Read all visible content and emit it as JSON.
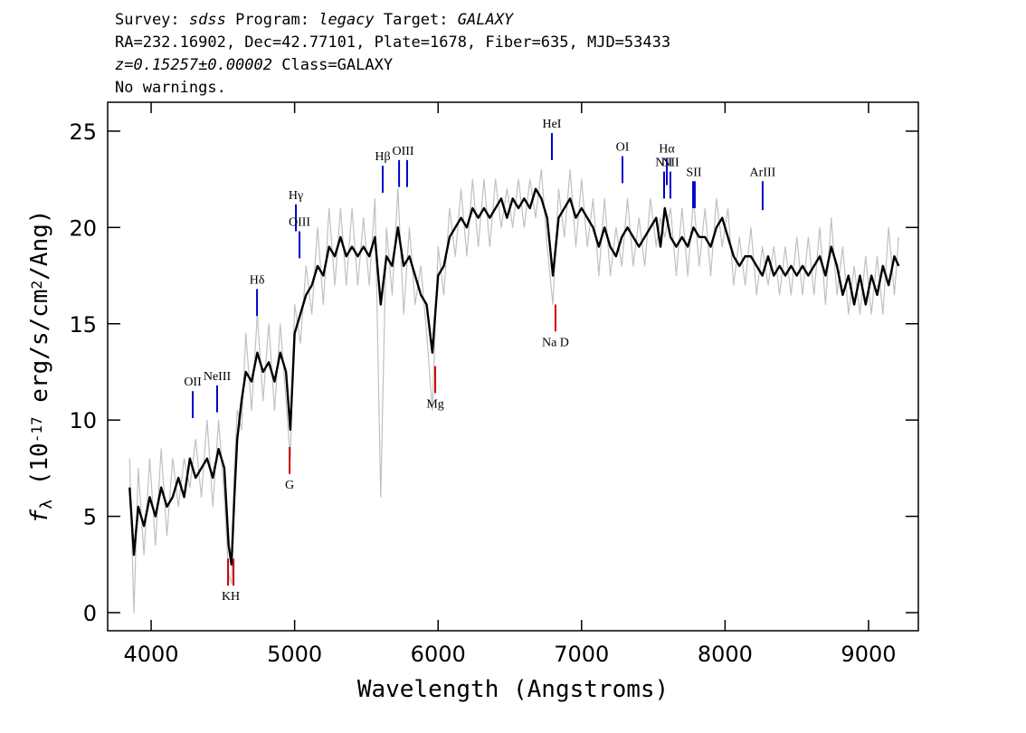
{
  "chart_data": {
    "type": "line",
    "header": [
      [
        {
          "text": "Survey: "
        },
        {
          "text": "sdss",
          "italic": true
        },
        {
          "text": " Program: "
        },
        {
          "text": "legacy",
          "italic": true
        },
        {
          "text": " Target: "
        },
        {
          "text": "GALAXY",
          "italic": true
        }
      ],
      [
        {
          "text": "RA=232.16902, Dec=42.77101, Plate=1678, Fiber=635, MJD=53433"
        }
      ],
      [
        {
          "text": "z=0.15257±0.00002",
          "italic": true
        },
        {
          "text": " Class=GALAXY"
        }
      ],
      [
        {
          "text": "No warnings."
        }
      ]
    ],
    "xlabel": "Wavelength (Angstroms)",
    "ylabel": [
      {
        "text": "f",
        "italic": true
      },
      {
        "text": "λ",
        "sub": true
      },
      {
        "text": " (10"
      },
      {
        "text": "-17",
        "sup": true
      },
      {
        "text": " erg/s/cm"
      },
      {
        "text": "2",
        "sup": true
      },
      {
        "text": "/Ang)"
      }
    ],
    "xlim": [
      3697,
      9347
    ],
    "ylim": [
      -0.94,
      26.5
    ],
    "xticks": [
      4000,
      5000,
      6000,
      7000,
      8000,
      9000
    ],
    "yticks": [
      0,
      5,
      10,
      15,
      20,
      25
    ],
    "x": [
      3850,
      3880,
      3910,
      3950,
      3990,
      4030,
      4070,
      4110,
      4150,
      4190,
      4230,
      4270,
      4310,
      4350,
      4390,
      4430,
      4470,
      4510,
      4540,
      4560,
      4580,
      4600,
      4630,
      4660,
      4700,
      4740,
      4780,
      4820,
      4860,
      4900,
      4940,
      4970,
      5000,
      5040,
      5080,
      5120,
      5160,
      5200,
      5240,
      5280,
      5320,
      5360,
      5400,
      5440,
      5480,
      5520,
      5560,
      5600,
      5640,
      5680,
      5720,
      5760,
      5800,
      5840,
      5880,
      5920,
      5960,
      6000,
      6040,
      6080,
      6120,
      6160,
      6200,
      6240,
      6280,
      6320,
      6360,
      6400,
      6440,
      6480,
      6520,
      6560,
      6600,
      6640,
      6680,
      6720,
      6760,
      6800,
      6840,
      6880,
      6920,
      6960,
      7000,
      7040,
      7080,
      7120,
      7160,
      7200,
      7240,
      7280,
      7320,
      7360,
      7400,
      7440,
      7480,
      7520,
      7550,
      7580,
      7620,
      7660,
      7700,
      7740,
      7780,
      7820,
      7860,
      7900,
      7940,
      7980,
      8020,
      8060,
      8100,
      8140,
      8180,
      8220,
      8260,
      8300,
      8340,
      8380,
      8420,
      8460,
      8500,
      8540,
      8580,
      8620,
      8660,
      8700,
      8740,
      8780,
      8820,
      8860,
      8900,
      8940,
      8980,
      9020,
      9060,
      9100,
      9140,
      9180,
      9210
    ],
    "series": [
      {
        "color": "#c0c0c0",
        "line_width": 1.2,
        "values": [
          8.0,
          0.0,
          7.5,
          3.0,
          8.0,
          3.5,
          8.5,
          4.0,
          8.0,
          5.5,
          8.0,
          6.5,
          9.0,
          6.0,
          10.0,
          5.5,
          10.0,
          6.0,
          2.0,
          1.5,
          7.5,
          10.5,
          9.5,
          14.5,
          10.5,
          15.5,
          11.0,
          15.0,
          10.5,
          15.0,
          11.0,
          8.0,
          16.0,
          14.0,
          18.0,
          15.5,
          20.0,
          16.0,
          21.0,
          17.0,
          21.0,
          17.0,
          21.0,
          17.0,
          20.5,
          17.0,
          21.5,
          6.0,
          20.0,
          16.5,
          22.0,
          15.5,
          20.0,
          16.0,
          18.0,
          14.5,
          10.5,
          19.0,
          16.5,
          21.0,
          18.5,
          22.0,
          18.5,
          22.5,
          19.0,
          22.5,
          19.0,
          22.5,
          20.0,
          22.0,
          20.0,
          22.5,
          20.0,
          22.5,
          20.5,
          23.0,
          19.0,
          16.0,
          22.0,
          19.5,
          23.0,
          19.0,
          22.5,
          19.0,
          21.5,
          17.5,
          21.5,
          17.5,
          20.0,
          18.0,
          21.5,
          18.0,
          20.5,
          18.0,
          21.5,
          19.0,
          20.5,
          19.5,
          21.0,
          17.5,
          21.0,
          17.5,
          21.5,
          18.0,
          21.0,
          17.5,
          21.5,
          19.0,
          21.0,
          17.0,
          19.5,
          17.0,
          20.0,
          16.5,
          19.0,
          17.0,
          19.0,
          16.5,
          19.0,
          16.5,
          19.5,
          16.5,
          19.5,
          16.5,
          20.0,
          16.0,
          20.5,
          16.5,
          19.0,
          15.5,
          18.0,
          15.5,
          18.5,
          15.5,
          18.5,
          15.5,
          20.0,
          16.5,
          19.5
        ]
      },
      {
        "color": "#000000",
        "line_width": 2.4,
        "values": [
          6.5,
          3.0,
          5.5,
          4.5,
          6.0,
          5.0,
          6.5,
          5.5,
          6.0,
          7.0,
          6.0,
          8.0,
          7.0,
          7.5,
          8.0,
          7.0,
          8.5,
          7.5,
          3.5,
          2.5,
          6.0,
          9.0,
          11.0,
          12.5,
          12.0,
          13.5,
          12.5,
          13.0,
          12.0,
          13.5,
          12.5,
          9.5,
          14.5,
          15.5,
          16.5,
          17.0,
          18.0,
          17.5,
          19.0,
          18.5,
          19.5,
          18.5,
          19.0,
          18.5,
          19.0,
          18.5,
          19.5,
          16.0,
          18.5,
          18.0,
          20.0,
          18.0,
          18.5,
          17.5,
          16.5,
          16.0,
          13.5,
          17.5,
          18.0,
          19.5,
          20.0,
          20.5,
          20.0,
          21.0,
          20.5,
          21.0,
          20.5,
          21.0,
          21.5,
          20.5,
          21.5,
          21.0,
          21.5,
          21.0,
          22.0,
          21.5,
          20.5,
          17.5,
          20.5,
          21.0,
          21.5,
          20.5,
          21.0,
          20.5,
          20.0,
          19.0,
          20.0,
          19.0,
          18.5,
          19.5,
          20.0,
          19.5,
          19.0,
          19.5,
          20.0,
          20.5,
          19.0,
          21.0,
          19.5,
          19.0,
          19.5,
          19.0,
          20.0,
          19.5,
          19.5,
          19.0,
          20.0,
          20.5,
          19.5,
          18.5,
          18.0,
          18.5,
          18.5,
          18.0,
          17.5,
          18.5,
          17.5,
          18.0,
          17.5,
          18.0,
          17.5,
          18.0,
          17.5,
          18.0,
          18.5,
          17.5,
          19.0,
          18.0,
          16.5,
          17.5,
          16.0,
          17.5,
          16.0,
          17.5,
          16.5,
          18.0,
          17.0,
          18.5,
          18.0
        ]
      }
    ],
    "emission_lines": {
      "color": "#0000cc",
      "items": [
        {
          "label": "OII",
          "x": [
            4290
          ],
          "y": [
            10.1,
            11.5
          ]
        },
        {
          "label": "NeIII",
          "x": [
            4460
          ],
          "y": [
            10.4,
            11.8
          ]
        },
        {
          "label": "Hδ",
          "x": [
            4738
          ],
          "y": [
            15.4,
            16.8
          ]
        },
        {
          "label": "Hγ",
          "x": [
            5009
          ],
          "y": [
            19.8,
            21.2
          ]
        },
        {
          "label": "OIII",
          "x": [
            5034
          ],
          "y": [
            18.4,
            19.8
          ]
        },
        {
          "label": "Hβ",
          "x": [
            5614
          ],
          "y": [
            21.8,
            23.2
          ]
        },
        {
          "label": "OIII",
          "x": [
            5728,
            5784
          ],
          "y": [
            22.1,
            23.5
          ]
        },
        {
          "label": "HeI",
          "x": [
            6793
          ],
          "y": [
            23.5,
            24.9
          ]
        },
        {
          "label": "OI",
          "x": [
            7285
          ],
          "y": [
            22.3,
            23.7
          ]
        },
        {
          "label": "NII",
          "x": [
            7575
          ],
          "y": [
            21.5,
            22.9
          ]
        },
        {
          "label": "Hα",
          "x": [
            7594
          ],
          "y": [
            22.2,
            23.6
          ]
        },
        {
          "label": "NII",
          "x": [
            7619
          ],
          "y": [
            21.5,
            22.9
          ]
        },
        {
          "label": "SII",
          "x": [
            7777,
            7789
          ],
          "y": [
            21.0,
            22.4
          ]
        },
        {
          "label": "ArIII",
          "x": [
            8262
          ],
          "y": [
            20.9,
            22.4
          ]
        }
      ]
    },
    "absorption_lines": {
      "color": "#cc0000",
      "items": [
        {
          "label": "KH",
          "x": [
            4536,
            4574
          ],
          "y": [
            1.4,
            2.8
          ]
        },
        {
          "label": "G",
          "x": [
            4965
          ],
          "y": [
            7.2,
            8.6
          ]
        },
        {
          "label": "Mg",
          "x": [
            5980
          ],
          "y": [
            11.4,
            12.8
          ]
        },
        {
          "label": "Na D",
          "x": [
            6818
          ],
          "y": [
            14.6,
            16.0
          ]
        }
      ]
    }
  }
}
